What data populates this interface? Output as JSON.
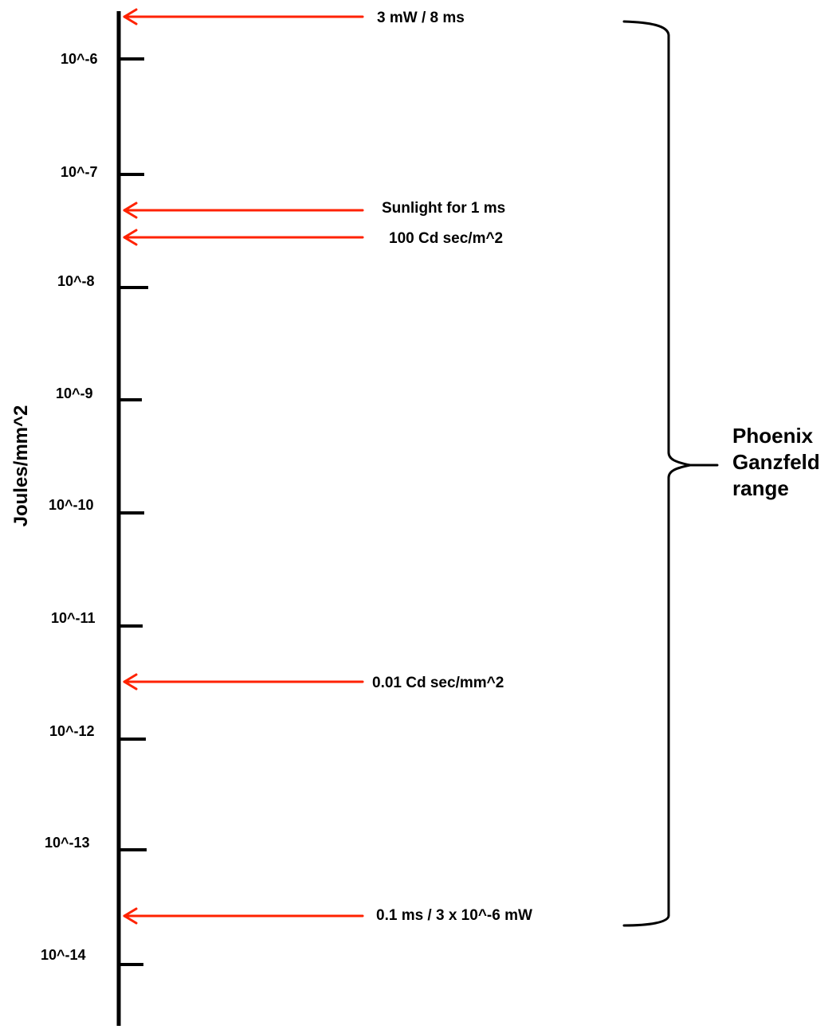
{
  "axis": {
    "label": "Joules/mm^2",
    "ticks": [
      "10^-6",
      "10^-7",
      "10^-8",
      "10^-9",
      "10^-10",
      "10^-11",
      "10^-12",
      "10^-13",
      "10^-14"
    ]
  },
  "colors": {
    "axis": "#000000",
    "arrow": "#ff2200",
    "text": "#000000"
  },
  "markers": [
    {
      "label": "3 mW / 8 ms"
    },
    {
      "label": "Sunlight for 1 ms"
    },
    {
      "label": "100 Cd sec/m^2"
    },
    {
      "label": "0.01 Cd sec/mm^2"
    },
    {
      "label": "0.1 ms / 3 x 10^-6 mW"
    }
  ],
  "range": {
    "lines": [
      "Phoenix",
      "Ganzfeld",
      "range"
    ]
  }
}
